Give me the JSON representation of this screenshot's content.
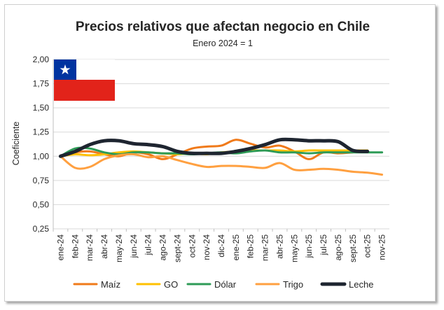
{
  "chart_data": {
    "type": "line",
    "title": "Precios relativos que afectan negocio en Chile",
    "subtitle": "Enero 2024 = 1",
    "ylabel": "Coeficiente",
    "xlabel": "",
    "ylim": [
      0.25,
      2.0
    ],
    "y_ticks": [
      "0,25",
      "0,50",
      "0,75",
      "1,00",
      "1,25",
      "1,50",
      "1,75",
      "2,00"
    ],
    "grid": true,
    "legend_position": "bottom",
    "categories": [
      "ene-24",
      "feb-24",
      "mar-24",
      "abr-24",
      "may-24",
      "jun-24",
      "jul-24",
      "ago-24",
      "sept-24",
      "oct-24",
      "nov-24",
      "dic-24",
      "ene-25",
      "feb-25",
      "mar-25",
      "abr-25",
      "may-25",
      "jun-25",
      "jul-25",
      "ago-25",
      "sept-25",
      "oct-25",
      "nov-25"
    ],
    "series": [
      {
        "name": "Maíz",
        "color": "#f07a1a",
        "values": [
          1.0,
          1.04,
          1.05,
          1.02,
          1.0,
          1.04,
          1.02,
          0.97,
          1.02,
          1.08,
          1.1,
          1.11,
          1.17,
          1.13,
          1.09,
          1.11,
          1.05,
          0.97,
          1.04,
          1.03,
          1.04,
          null,
          null
        ]
      },
      {
        "name": "GO",
        "color": "#ffc000",
        "values": [
          1.0,
          1.02,
          1.01,
          1.02,
          1.04,
          1.05,
          1.04,
          1.03,
          1.02,
          1.03,
          1.02,
          1.04,
          1.05,
          1.06,
          1.06,
          1.06,
          1.05,
          1.06,
          1.06,
          1.06,
          1.06,
          1.06,
          null
        ]
      },
      {
        "name": "Dólar",
        "color": "#2e9b57",
        "values": [
          1.0,
          1.08,
          1.08,
          1.04,
          1.02,
          1.04,
          1.04,
          1.03,
          1.03,
          1.02,
          1.03,
          1.04,
          1.03,
          1.05,
          1.06,
          1.04,
          1.04,
          1.03,
          1.04,
          1.04,
          1.04,
          1.04,
          1.04
        ]
      },
      {
        "name": "Trigo",
        "color": "#ffa040",
        "values": [
          1.0,
          0.88,
          0.89,
          0.97,
          1.01,
          1.02,
          0.99,
          1.0,
          0.96,
          0.92,
          0.89,
          0.9,
          0.9,
          0.89,
          0.88,
          0.93,
          0.86,
          0.86,
          0.87,
          0.86,
          0.84,
          0.83,
          0.81
        ]
      },
      {
        "name": "Leche",
        "color": "#1e2530",
        "values": [
          1.0,
          1.05,
          1.12,
          1.16,
          1.16,
          1.13,
          1.12,
          1.1,
          1.05,
          1.03,
          1.03,
          1.03,
          1.05,
          1.08,
          1.12,
          1.17,
          1.17,
          1.16,
          1.16,
          1.15,
          1.06,
          1.05,
          null
        ]
      }
    ]
  },
  "flag": {
    "name": "chile-flag",
    "colors": {
      "blue": "#0033a0",
      "white": "#ffffff",
      "red": "#e2231a"
    }
  }
}
